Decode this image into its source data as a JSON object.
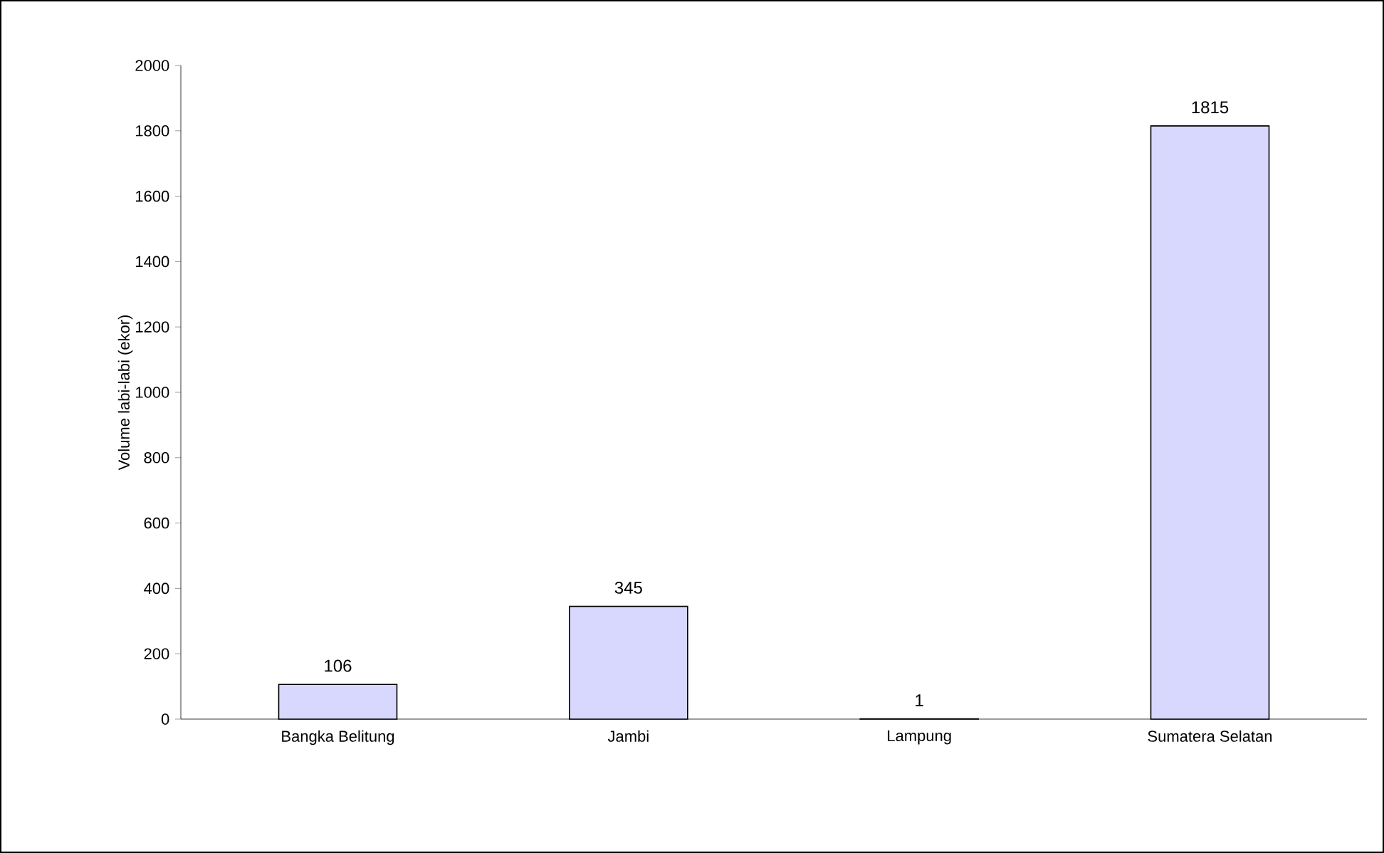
{
  "chart_data": {
    "type": "bar",
    "ylabel": "Volume labi-labi (ekor)",
    "categories": [
      "Bangka Belitung",
      "Jambi",
      "Lampung",
      "Sumatera Selatan"
    ],
    "values": [
      106,
      345,
      1,
      1815
    ],
    "color": "#d8d8ff",
    "ylim": [
      0,
      2000
    ],
    "yticks": [
      0,
      200,
      400,
      600,
      800,
      1000,
      1200,
      1400,
      1600,
      1800,
      2000
    ],
    "data_labels": true
  }
}
